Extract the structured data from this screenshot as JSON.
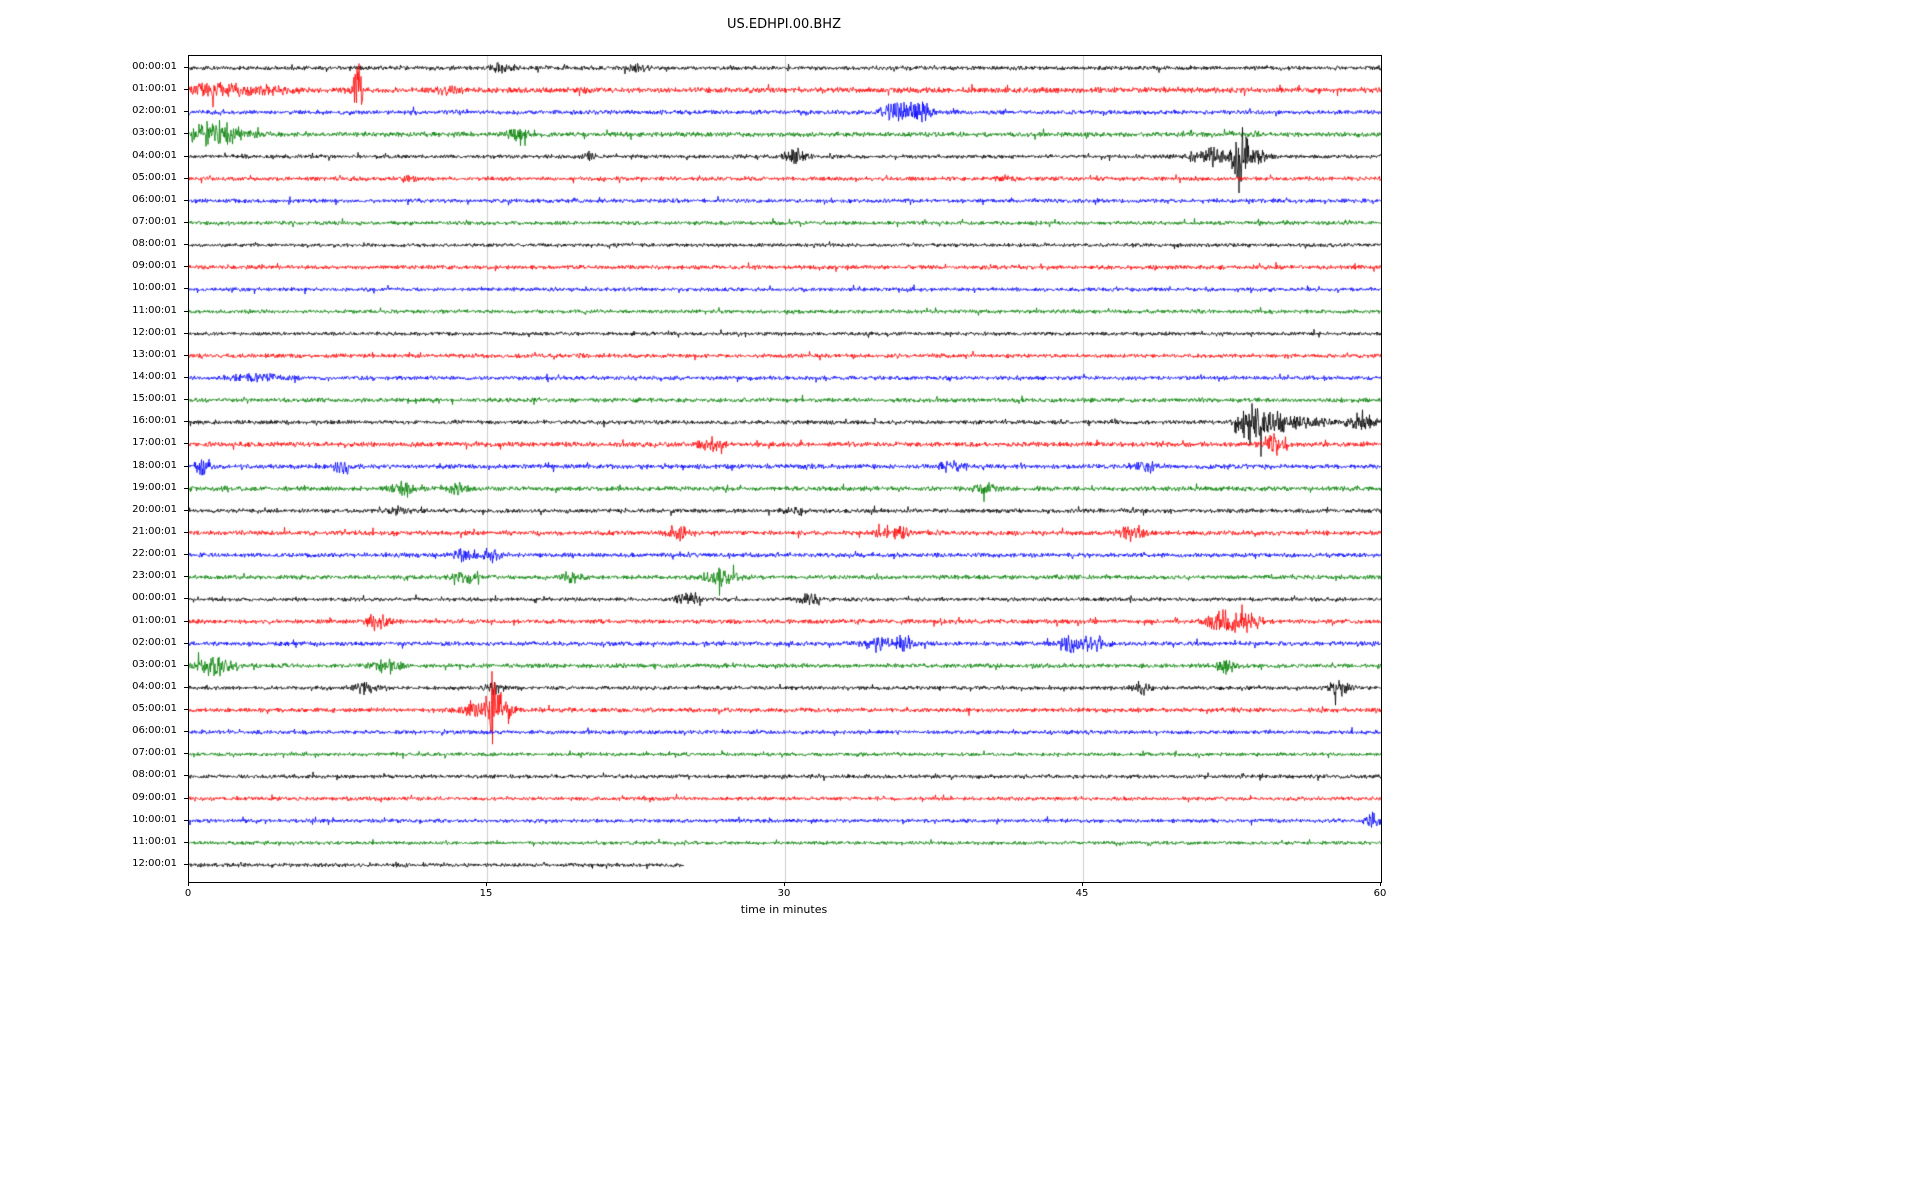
{
  "chart_data": {
    "type": "line",
    "subtype": "seismogram-dayplot",
    "title": "US.EDHPI.00.BHZ",
    "xlabel": "time in minutes",
    "xlim": [
      0,
      60
    ],
    "x_ticks": [
      "0",
      "15",
      "30",
      "45",
      "60"
    ],
    "x_tick_values": [
      0,
      15,
      30,
      45,
      60
    ],
    "grid": {
      "vertical_minutes": [
        15,
        30,
        45
      ],
      "color": "#cccccc",
      "on": true
    },
    "legend": "none",
    "trace_color_cycle": [
      "#000000",
      "#ff0000",
      "#0000ff",
      "#008000"
    ],
    "rows": [
      {
        "label": "00:00:01",
        "color": "#000000",
        "noise": 1.5,
        "extent": 1,
        "events": [
          {
            "m": 15.8,
            "a": 3,
            "w": 0.5
          },
          {
            "m": 22.6,
            "a": 2.5,
            "w": 0.4
          }
        ]
      },
      {
        "label": "01:00:01",
        "color": "#ff0000",
        "noise": 2.0,
        "extent": 1,
        "events": [
          {
            "m": 1.5,
            "a": 4,
            "w": 2
          },
          {
            "m": 8.5,
            "a": 22,
            "w": 0.15
          },
          {
            "m": 13,
            "a": 3,
            "w": 0.5
          }
        ]
      },
      {
        "label": "02:00:01",
        "color": "#0000ff",
        "noise": 1.6,
        "extent": 1,
        "events": [
          {
            "m": 35.7,
            "a": 7,
            "w": 0.5
          },
          {
            "m": 36.9,
            "a": 6,
            "w": 0.4
          }
        ]
      },
      {
        "label": "03:00:01",
        "color": "#008000",
        "noise": 1.8,
        "extent": 1,
        "events": [
          {
            "m": 0.8,
            "a": 7,
            "w": 0.7
          },
          {
            "m": 2.0,
            "a": 5,
            "w": 0.8
          },
          {
            "m": 16.5,
            "a": 4,
            "w": 0.4
          }
        ]
      },
      {
        "label": "04:00:01",
        "color": "#000000",
        "noise": 1.4,
        "extent": 1,
        "events": [
          {
            "m": 20,
            "a": 2.5,
            "w": 0.3
          },
          {
            "m": 30.5,
            "a": 5,
            "w": 0.4
          },
          {
            "m": 51.6,
            "a": 6,
            "w": 0.9
          },
          {
            "m": 52.9,
            "a": 21,
            "w": 0.2
          },
          {
            "m": 53.5,
            "a": 5,
            "w": 0.5
          }
        ]
      },
      {
        "label": "05:00:01",
        "color": "#ff0000",
        "noise": 1.5,
        "extent": 1,
        "events": [
          {
            "m": 11,
            "a": 2.5,
            "w": 0.3
          },
          {
            "m": 41,
            "a": 2.5,
            "w": 0.3
          }
        ]
      },
      {
        "label": "06:00:01",
        "color": "#0000ff",
        "noise": 1.5,
        "extent": 1,
        "events": []
      },
      {
        "label": "07:00:01",
        "color": "#008000",
        "noise": 1.4,
        "extent": 1,
        "events": []
      },
      {
        "label": "08:00:01",
        "color": "#000000",
        "noise": 1.3,
        "extent": 1,
        "events": []
      },
      {
        "label": "09:00:01",
        "color": "#ff0000",
        "noise": 1.5,
        "extent": 1,
        "events": []
      },
      {
        "label": "10:00:01",
        "color": "#0000ff",
        "noise": 1.4,
        "extent": 1,
        "events": []
      },
      {
        "label": "11:00:01",
        "color": "#008000",
        "noise": 1.4,
        "extent": 1,
        "events": []
      },
      {
        "label": "12:00:01",
        "color": "#000000",
        "noise": 1.3,
        "extent": 1,
        "events": []
      },
      {
        "label": "13:00:01",
        "color": "#ff0000",
        "noise": 1.5,
        "extent": 1,
        "events": []
      },
      {
        "label": "14:00:01",
        "color": "#0000ff",
        "noise": 1.5,
        "extent": 1,
        "events": [
          {
            "m": 3.5,
            "a": 2.5,
            "w": 1
          }
        ]
      },
      {
        "label": "15:00:01",
        "color": "#008000",
        "noise": 1.6,
        "extent": 1,
        "events": []
      },
      {
        "label": "16:00:01",
        "color": "#000000",
        "noise": 1.5,
        "extent": 1,
        "events": [
          {
            "m": 53.4,
            "a": 16,
            "w": 0.35
          },
          {
            "m": 54.5,
            "a": 5,
            "w": 0.8
          },
          {
            "m": 56,
            "a": 3,
            "w": 1
          },
          {
            "m": 59,
            "a": 5,
            "w": 0.5
          }
        ]
      },
      {
        "label": "17:00:01",
        "color": "#ff0000",
        "noise": 1.8,
        "extent": 1,
        "events": [
          {
            "m": 26.3,
            "a": 4,
            "w": 0.4
          },
          {
            "m": 54.6,
            "a": 6,
            "w": 0.4
          }
        ]
      },
      {
        "label": "18:00:01",
        "color": "#0000ff",
        "noise": 1.7,
        "extent": 1,
        "events": [
          {
            "m": 0.7,
            "a": 6,
            "w": 0.25
          },
          {
            "m": 7.7,
            "a": 6,
            "w": 0.25
          },
          {
            "m": 38.3,
            "a": 3.5,
            "w": 0.4
          },
          {
            "m": 48.2,
            "a": 3.5,
            "w": 0.4
          }
        ]
      },
      {
        "label": "19:00:01",
        "color": "#008000",
        "noise": 1.7,
        "extent": 1,
        "events": [
          {
            "m": 10.7,
            "a": 4,
            "w": 0.4
          },
          {
            "m": 13.5,
            "a": 3,
            "w": 0.4
          },
          {
            "m": 40,
            "a": 4,
            "w": 0.4
          }
        ]
      },
      {
        "label": "20:00:01",
        "color": "#000000",
        "noise": 1.5,
        "extent": 1,
        "events": [
          {
            "m": 10.5,
            "a": 2.5,
            "w": 0.5
          },
          {
            "m": 30.5,
            "a": 2.5,
            "w": 0.5
          }
        ]
      },
      {
        "label": "21:00:01",
        "color": "#ff0000",
        "noise": 1.7,
        "extent": 1,
        "events": [
          {
            "m": 24.7,
            "a": 6,
            "w": 0.4
          },
          {
            "m": 35.5,
            "a": 5,
            "w": 0.5
          },
          {
            "m": 47.5,
            "a": 6,
            "w": 0.4
          }
        ]
      },
      {
        "label": "22:00:01",
        "color": "#0000ff",
        "noise": 1.6,
        "extent": 1,
        "events": [
          {
            "m": 13.8,
            "a": 4,
            "w": 0.4
          },
          {
            "m": 15.1,
            "a": 3.5,
            "w": 0.4
          }
        ]
      },
      {
        "label": "23:00:01",
        "color": "#008000",
        "noise": 1.6,
        "extent": 1,
        "events": [
          {
            "m": 13.9,
            "a": 4,
            "w": 0.4
          },
          {
            "m": 19.2,
            "a": 3.5,
            "w": 0.4
          },
          {
            "m": 26.8,
            "a": 6,
            "w": 0.5
          }
        ]
      },
      {
        "label": "00:00:01",
        "color": "#000000",
        "noise": 1.4,
        "extent": 1,
        "events": [
          {
            "m": 25.1,
            "a": 5,
            "w": 0.4
          },
          {
            "m": 31.2,
            "a": 3.5,
            "w": 0.4
          }
        ]
      },
      {
        "label": "01:00:01",
        "color": "#ff0000",
        "noise": 1.6,
        "extent": 1,
        "events": [
          {
            "m": 9.5,
            "a": 5,
            "w": 0.4
          },
          {
            "m": 52,
            "a": 7,
            "w": 0.5
          },
          {
            "m": 53.3,
            "a": 7,
            "w": 0.5
          }
        ]
      },
      {
        "label": "02:00:01",
        "color": "#0000ff",
        "noise": 1.6,
        "extent": 1,
        "events": [
          {
            "m": 34.8,
            "a": 6,
            "w": 0.5
          },
          {
            "m": 36.1,
            "a": 5,
            "w": 0.4
          },
          {
            "m": 44.3,
            "a": 5,
            "w": 0.4
          },
          {
            "m": 45.6,
            "a": 6,
            "w": 0.4
          }
        ]
      },
      {
        "label": "03:00:01",
        "color": "#008000",
        "noise": 1.6,
        "extent": 1,
        "events": [
          {
            "m": 1.3,
            "a": 7,
            "w": 0.6
          },
          {
            "m": 9.9,
            "a": 5,
            "w": 0.5
          },
          {
            "m": 52.3,
            "a": 5,
            "w": 0.4
          }
        ]
      },
      {
        "label": "04:00:01",
        "color": "#000000",
        "noise": 1.4,
        "extent": 1,
        "events": [
          {
            "m": 8.9,
            "a": 3.5,
            "w": 0.4
          },
          {
            "m": 15.4,
            "a": 4,
            "w": 0.3
          },
          {
            "m": 47.9,
            "a": 5,
            "w": 0.3
          },
          {
            "m": 57.9,
            "a": 5,
            "w": 0.4
          }
        ]
      },
      {
        "label": "05:00:01",
        "color": "#ff0000",
        "noise": 1.6,
        "extent": 1,
        "events": [
          {
            "m": 14.4,
            "a": 7,
            "w": 0.5
          },
          {
            "m": 15.3,
            "a": 18,
            "w": 0.25
          },
          {
            "m": 15.9,
            "a": 6,
            "w": 0.4
          }
        ]
      },
      {
        "label": "06:00:01",
        "color": "#0000ff",
        "noise": 1.4,
        "extent": 1,
        "events": []
      },
      {
        "label": "07:00:01",
        "color": "#008000",
        "noise": 1.3,
        "extent": 1,
        "events": []
      },
      {
        "label": "08:00:01",
        "color": "#000000",
        "noise": 1.4,
        "extent": 1,
        "events": []
      },
      {
        "label": "09:00:01",
        "color": "#ff0000",
        "noise": 1.4,
        "extent": 1,
        "events": []
      },
      {
        "label": "10:00:01",
        "color": "#0000ff",
        "noise": 1.4,
        "extent": 1,
        "events": [
          {
            "m": 59.6,
            "a": 5,
            "w": 0.3
          }
        ]
      },
      {
        "label": "11:00:01",
        "color": "#008000",
        "noise": 1.3,
        "extent": 1,
        "events": []
      },
      {
        "label": "12:00:01",
        "color": "#000000",
        "noise": 1.4,
        "extent": 0.415,
        "events": []
      }
    ]
  }
}
